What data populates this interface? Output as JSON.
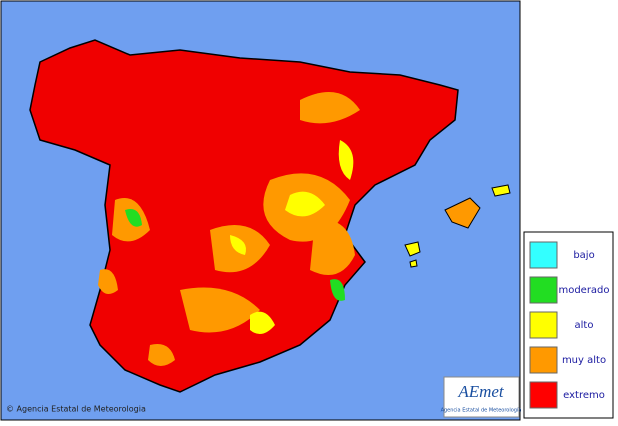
{
  "map": {
    "copyright": "© Agencia Estatal de Meteorologia",
    "logo": {
      "title": "AEmet",
      "subtitle": "Agencia Estatal de Meteorología"
    },
    "legend": [
      {
        "name": "bajo",
        "color": "#33ffff"
      },
      {
        "name": "moderado",
        "color": "#22dd22"
      },
      {
        "name": "alto",
        "color": "#ffff00"
      },
      {
        "name": "muy alto",
        "color": "#ff9900"
      },
      {
        "name": "extremo",
        "color": "#ff0000"
      }
    ]
  }
}
